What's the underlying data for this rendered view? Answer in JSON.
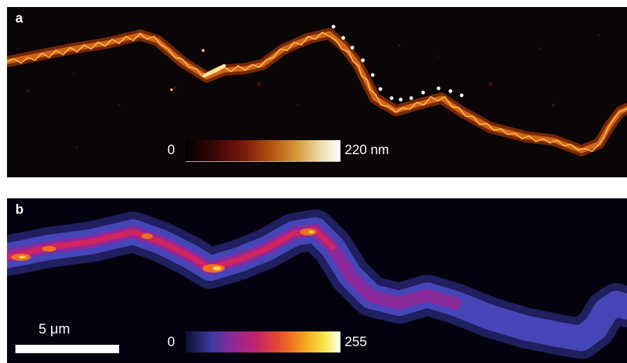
{
  "panel_a": {
    "label": "a",
    "colorbar": {
      "min_label": "0",
      "max_label": "220 nm",
      "colors": [
        "#000000",
        "#7a1a0a",
        "#d79a3a",
        "#ffffff"
      ]
    }
  },
  "panel_b": {
    "label": "b",
    "colorbar": {
      "min_label": "0",
      "max_label": "255",
      "colors": [
        "#0c0c30",
        "#3a3aa0",
        "#c2226e",
        "#f49a1a",
        "#f8e84a",
        "#ffffff"
      ]
    },
    "scale_bar": {
      "label": "5 μm"
    }
  },
  "colors": {
    "fiber_a": "#e07a1c",
    "fiber_a_core": "#ffd24a",
    "fiber_b_outer": "#3c3ca8",
    "fiber_b_inner": "#b02a8a",
    "marker_dots": "#ffffff"
  }
}
